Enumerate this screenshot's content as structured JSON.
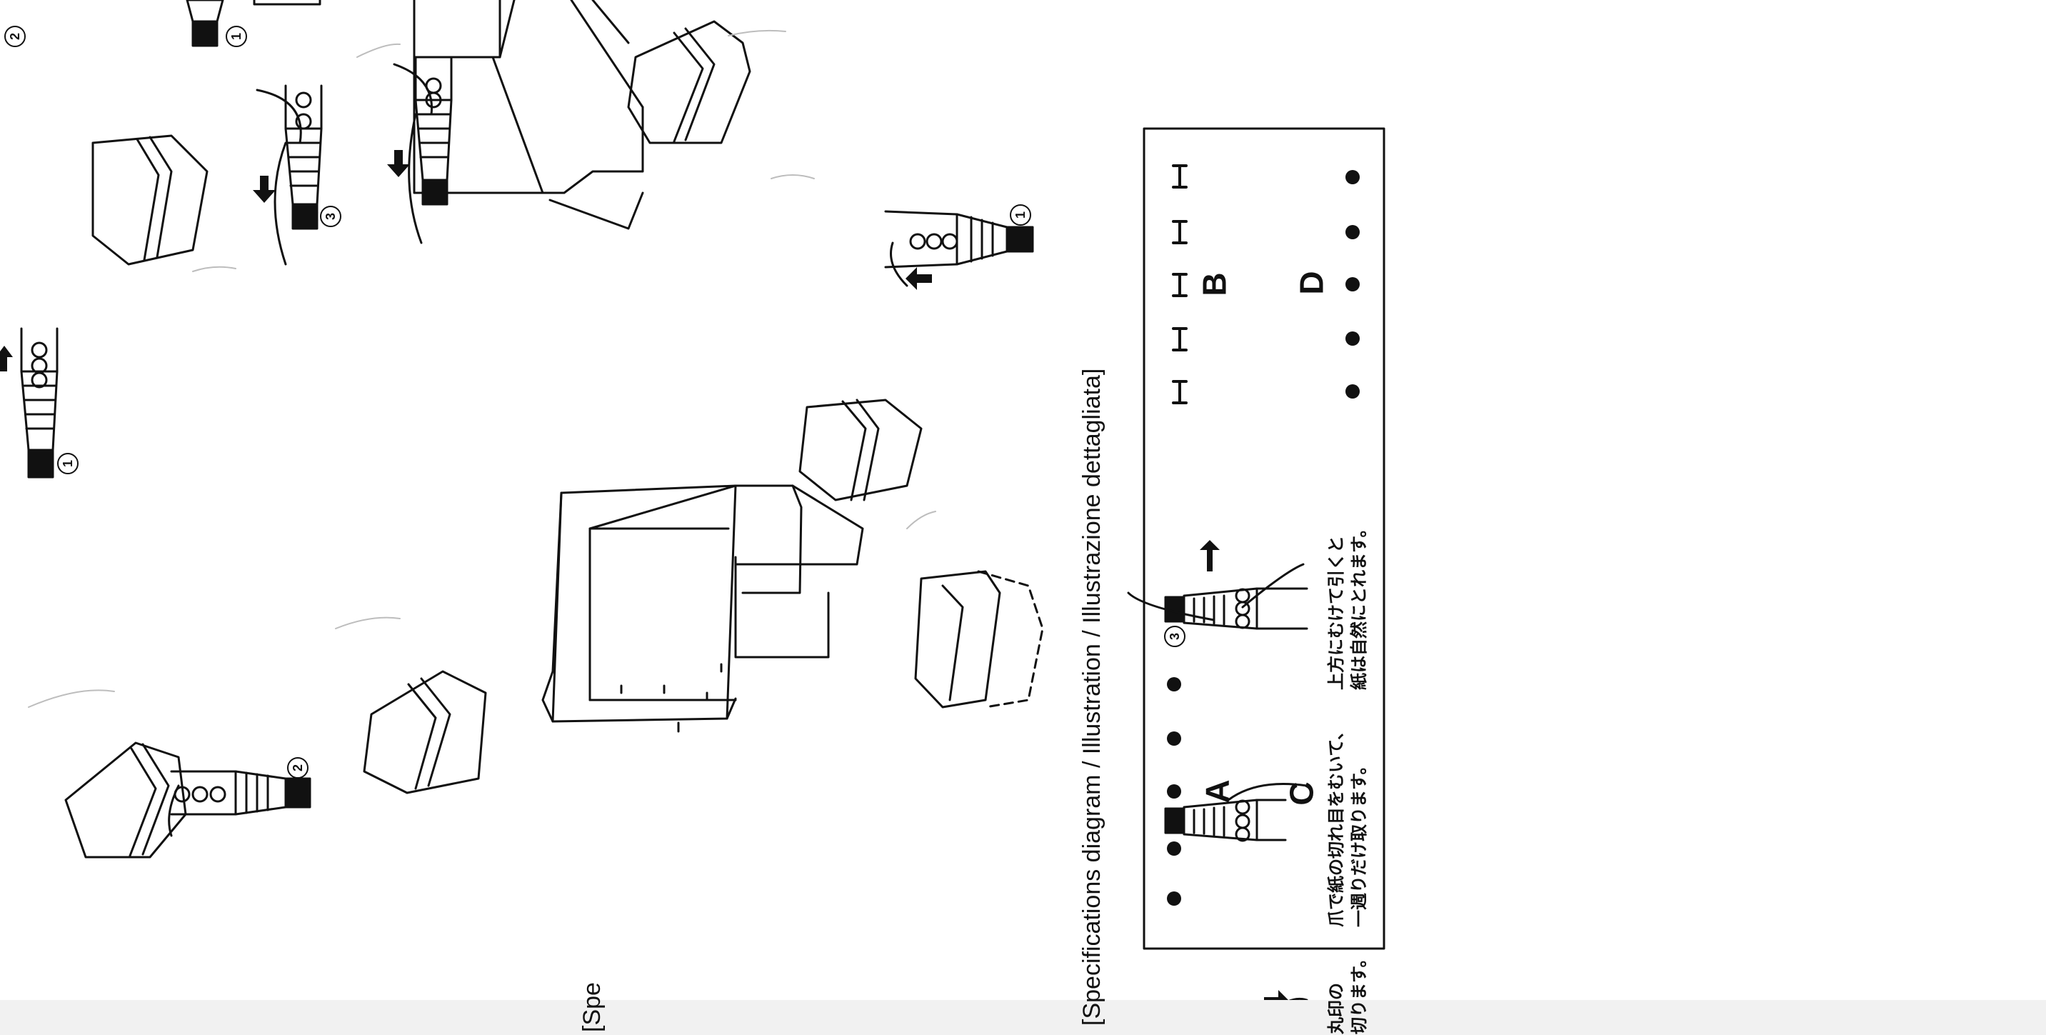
{
  "spec_heading": "[Specifications diagram / Illustration / Illustrazione dettagliata]",
  "spec_fragment": "[Spe",
  "labels": {
    "a": "A",
    "b": "B",
    "c": "C",
    "d": "D"
  },
  "steps": {
    "one": "1",
    "two": "2",
    "three": "3"
  },
  "jp_note_1": {
    "line1": "爪で紙の切れ目をむいて、",
    "line2": "一週りだけ取ります。"
  },
  "jp_note_2": {
    "line1": "上方にむけて引くと",
    "line2": "紙は自然にとれます。"
  },
  "jp_note_3": {
    "line1": "丸印の",
    "line2": "切ります。"
  },
  "colors": {
    "ink": "#111111",
    "paper": "#ffffff"
  }
}
